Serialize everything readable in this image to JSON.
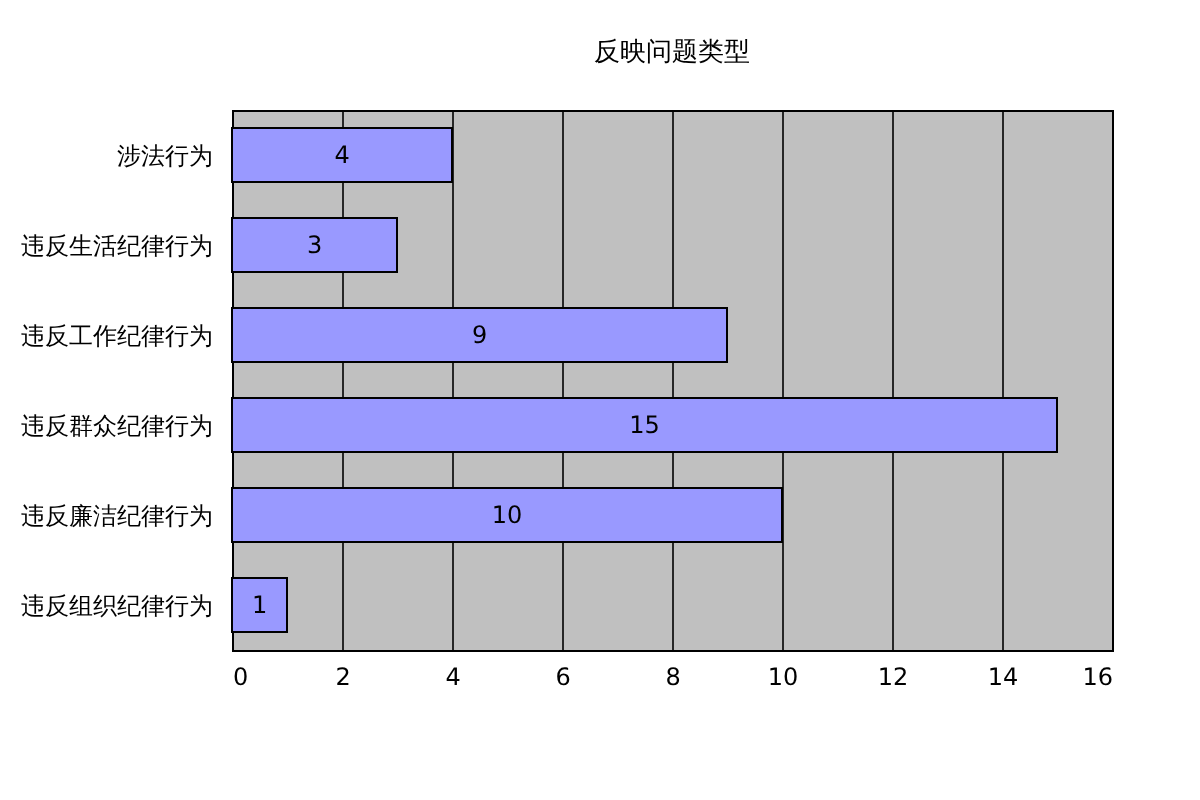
{
  "chart_data": {
    "type": "bar",
    "orientation": "horizontal",
    "title": "反映问题类型",
    "categories": [
      "涉法行为",
      "违反生活纪律行为",
      "违反工作纪律行为",
      "违反群众纪律行为",
      "违反廉洁纪律行为",
      "违反组织纪律行为"
    ],
    "values": [
      4,
      3,
      9,
      15,
      10,
      1
    ],
    "color": "#9999ff",
    "xlim": [
      0,
      16
    ],
    "xticks": [
      0,
      2,
      4,
      6,
      8,
      10,
      12,
      14,
      16
    ],
    "grid": "x",
    "data_labels": true
  }
}
